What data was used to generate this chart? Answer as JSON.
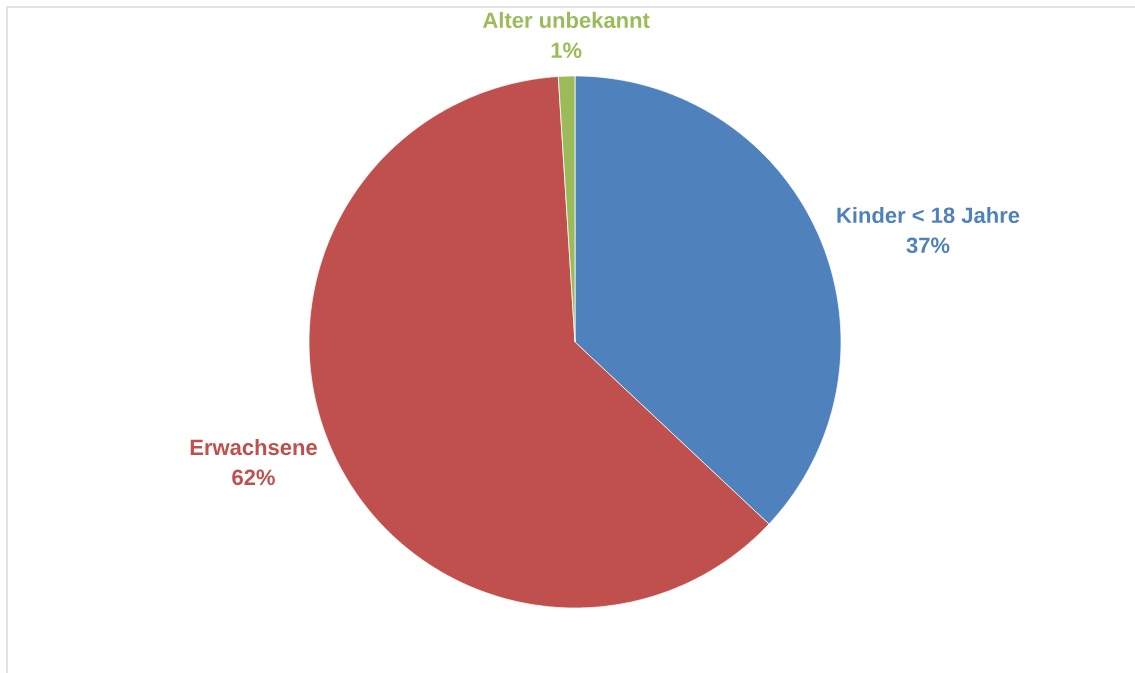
{
  "chart_data": {
    "type": "pie",
    "categories": [
      "Kinder < 18 Jahre",
      "Erwachsene",
      "Alter unbekannt"
    ],
    "values": [
      37,
      62,
      1
    ],
    "colors": [
      "#4f81bd",
      "#c0504d",
      "#9bbb59"
    ],
    "value_labels": [
      "37%",
      "62%",
      "1%"
    ]
  }
}
